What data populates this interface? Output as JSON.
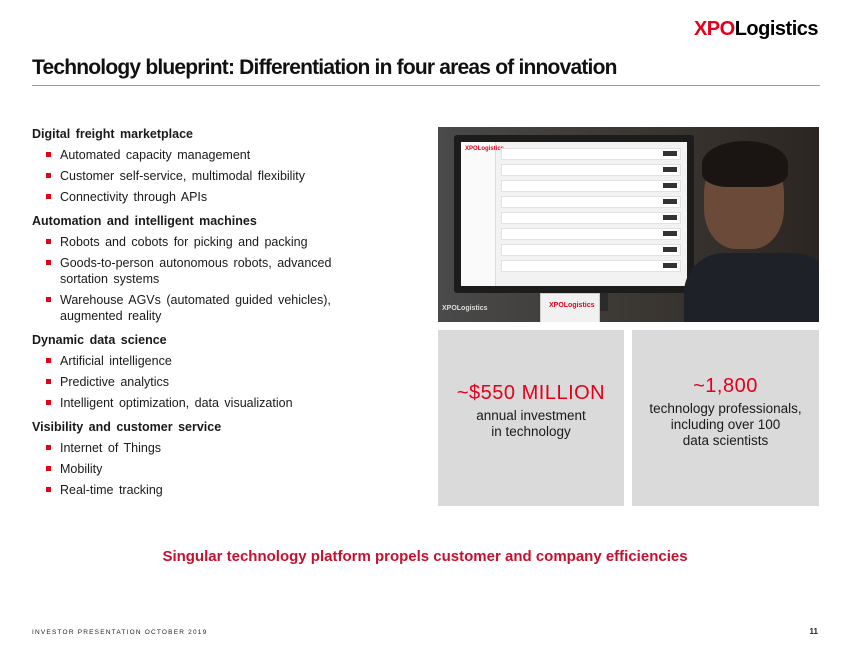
{
  "brand": {
    "logo_xpo": "XPO",
    "logo_rest": "Logistics",
    "accent": "#e4001b"
  },
  "title": "Technology blueprint: Differentiation in four areas of innovation",
  "sections": [
    {
      "heading": "Digital freight marketplace",
      "items": [
        "Automated capacity management",
        "Customer self-service, multimodal flexibility",
        "Connectivity through APIs"
      ]
    },
    {
      "heading": "Automation and intelligent machines",
      "items": [
        "Robots and cobots for picking and packing",
        "Goods-to-person autonomous robots, advanced sortation systems",
        "Warehouse AGVs (automated guided vehicles), augmented reality"
      ]
    },
    {
      "heading": "Dynamic data science",
      "items": [
        "Artificial intelligence",
        "Predictive analytics",
        "Intelligent optimization, data visualization"
      ]
    },
    {
      "heading": "Visibility and customer service",
      "items": [
        "Internet of Things",
        "Mobility",
        "Real-time tracking"
      ]
    }
  ],
  "photo": {
    "screen_logo": "XPOLogistics",
    "box_logo": "XPOLogistics",
    "desk_logo": "XPOLogistics"
  },
  "stats": [
    {
      "value": "~$550 MILLION",
      "lines": [
        "annual investment",
        "in technology"
      ]
    },
    {
      "value": "~1,800",
      "lines": [
        "technology professionals,",
        "including over 100",
        "data scientists"
      ]
    }
  ],
  "tagline": "Singular technology platform propels customer and company efficiencies",
  "footer": "INVESTOR PRESENTATION  OCTOBER 2019",
  "page_number": "11"
}
